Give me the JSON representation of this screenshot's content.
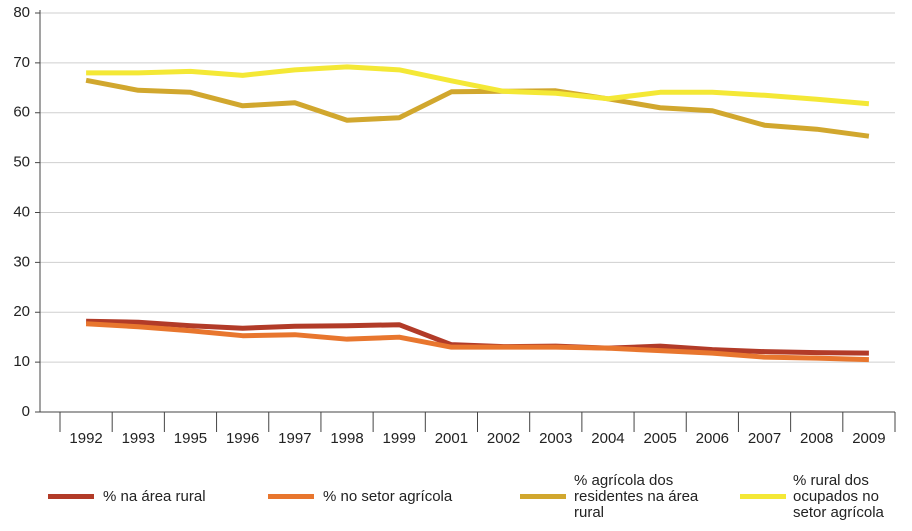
{
  "chart_data": {
    "type": "line",
    "categories": [
      "1992",
      "1993",
      "1995",
      "1996",
      "1997",
      "1998",
      "1999",
      "2001",
      "2002",
      "2003",
      "2004",
      "2005",
      "2006",
      "2007",
      "2008",
      "2009"
    ],
    "series": [
      {
        "name": "% na área rural",
        "color": "#b23b28",
        "values": [
          18.2,
          18.0,
          17.3,
          16.8,
          17.2,
          17.3,
          17.5,
          13.5,
          13.1,
          13.2,
          12.8,
          13.2,
          12.5,
          12.1,
          11.9,
          11.8
        ]
      },
      {
        "name": "% no setor agrícola",
        "color": "#e8762e",
        "values": [
          17.7,
          17.1,
          16.3,
          15.3,
          15.5,
          14.6,
          15.0,
          13.0,
          13.0,
          13.0,
          12.8,
          12.3,
          11.8,
          11.0,
          10.8,
          10.5
        ]
      },
      {
        "name": "% agrícola dos residentes na área rural",
        "color": "#d1a72e",
        "values": [
          66.5,
          64.5,
          64.1,
          61.4,
          62.0,
          58.5,
          59.0,
          64.2,
          64.3,
          64.4,
          62.8,
          61.0,
          60.4,
          57.5,
          56.7,
          55.3
        ]
      },
      {
        "name": "% rural dos ocupados no setor agrícola",
        "color": "#f4e836",
        "values": [
          68.0,
          68.0,
          68.3,
          67.5,
          68.6,
          69.2,
          68.6,
          66.4,
          64.3,
          63.9,
          62.8,
          64.1,
          64.1,
          63.5,
          62.7,
          61.8
        ]
      }
    ],
    "ylim": [
      0,
      80
    ],
    "yticks": [
      0,
      10,
      20,
      30,
      40,
      50,
      60,
      70,
      80
    ],
    "grid": true
  }
}
